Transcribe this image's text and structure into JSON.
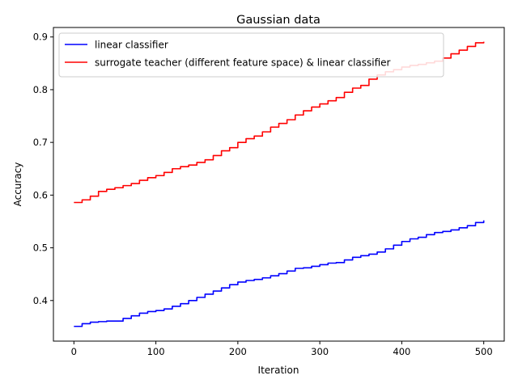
{
  "chart_data": {
    "type": "line",
    "title": "Gaussian data",
    "xlabel": "Iteration",
    "ylabel": "Accuracy",
    "xlim": [
      -25,
      525
    ],
    "ylim": [
      0.323,
      0.918
    ],
    "xticks": [
      0,
      100,
      200,
      300,
      400,
      500
    ],
    "yticks": [
      0.4,
      0.5,
      0.6,
      0.7,
      0.8,
      0.9
    ],
    "grid": false,
    "legend_position": "top-left",
    "series": [
      {
        "name": "linear classifier",
        "color": "#0000ff",
        "x": [
          0,
          10,
          20,
          30,
          40,
          50,
          60,
          70,
          80,
          90,
          100,
          110,
          120,
          130,
          140,
          150,
          160,
          170,
          180,
          190,
          200,
          210,
          220,
          230,
          240,
          250,
          260,
          270,
          280,
          290,
          300,
          310,
          320,
          330,
          340,
          350,
          360,
          370,
          380,
          390,
          400,
          410,
          420,
          430,
          440,
          450,
          460,
          470,
          480,
          490,
          500
        ],
        "values": [
          0.351,
          0.356,
          0.359,
          0.36,
          0.361,
          0.361,
          0.366,
          0.371,
          0.376,
          0.379,
          0.381,
          0.384,
          0.389,
          0.394,
          0.4,
          0.406,
          0.412,
          0.418,
          0.424,
          0.43,
          0.435,
          0.438,
          0.44,
          0.443,
          0.447,
          0.451,
          0.456,
          0.461,
          0.462,
          0.465,
          0.468,
          0.471,
          0.472,
          0.477,
          0.482,
          0.485,
          0.488,
          0.492,
          0.498,
          0.505,
          0.512,
          0.517,
          0.52,
          0.525,
          0.529,
          0.531,
          0.534,
          0.538,
          0.542,
          0.548,
          0.552
        ]
      },
      {
        "name": "surrogate teacher (different feature space) & linear classifier",
        "color": "#ff0000",
        "x": [
          0,
          10,
          20,
          30,
          40,
          50,
          60,
          70,
          80,
          90,
          100,
          110,
          120,
          130,
          140,
          150,
          160,
          170,
          180,
          190,
          200,
          210,
          220,
          230,
          240,
          250,
          260,
          270,
          280,
          290,
          300,
          310,
          320,
          330,
          340,
          350,
          360,
          370,
          380,
          390,
          400,
          410,
          420,
          430,
          440,
          450,
          460,
          470,
          480,
          490,
          500
        ],
        "values": [
          0.586,
          0.591,
          0.598,
          0.607,
          0.611,
          0.614,
          0.618,
          0.622,
          0.628,
          0.633,
          0.637,
          0.643,
          0.65,
          0.654,
          0.657,
          0.662,
          0.667,
          0.675,
          0.684,
          0.69,
          0.7,
          0.707,
          0.712,
          0.72,
          0.729,
          0.736,
          0.743,
          0.752,
          0.76,
          0.767,
          0.773,
          0.779,
          0.785,
          0.795,
          0.803,
          0.808,
          0.82,
          0.828,
          0.834,
          0.838,
          0.843,
          0.846,
          0.848,
          0.851,
          0.854,
          0.86,
          0.868,
          0.875,
          0.882,
          0.889,
          0.891
        ]
      }
    ]
  }
}
